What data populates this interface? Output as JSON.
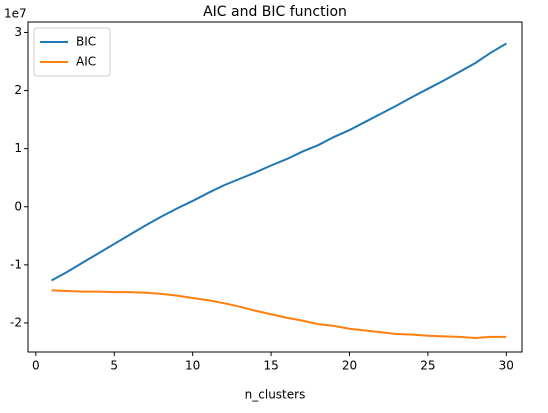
{
  "chart_data": {
    "type": "line",
    "title": "AIC and BIC function",
    "xlabel": "n_clusters",
    "y_offset_text": "1e7",
    "x": [
      1,
      2,
      3,
      4,
      5,
      6,
      7,
      8,
      9,
      10,
      11,
      12,
      13,
      14,
      15,
      16,
      17,
      18,
      19,
      20,
      21,
      22,
      23,
      24,
      25,
      26,
      27,
      28,
      29,
      30
    ],
    "series": [
      {
        "name": "BIC",
        "color": "#1f77b4",
        "values": [
          -1.27,
          -1.12,
          -0.96,
          -0.8,
          -0.64,
          -0.48,
          -0.32,
          -0.17,
          -0.03,
          0.1,
          0.24,
          0.37,
          0.48,
          0.59,
          0.71,
          0.82,
          0.95,
          1.06,
          1.2,
          1.32,
          1.46,
          1.6,
          1.74,
          1.89,
          2.03,
          2.17,
          2.32,
          2.47,
          2.65,
          2.81
        ]
      },
      {
        "name": "AIC",
        "color": "#ff7f0e",
        "values": [
          -1.44,
          -1.45,
          -1.46,
          -1.46,
          -1.47,
          -1.47,
          -1.48,
          -1.5,
          -1.53,
          -1.57,
          -1.61,
          -1.66,
          -1.72,
          -1.79,
          -1.85,
          -1.91,
          -1.96,
          -2.02,
          -2.05,
          -2.1,
          -2.13,
          -2.16,
          -2.19,
          -2.2,
          -2.22,
          -2.23,
          -2.24,
          -2.26,
          -2.24,
          -2.24
        ]
      }
    ],
    "xlim": [
      -0.5,
      31
    ],
    "xticks": [
      0,
      5,
      10,
      15,
      20,
      25,
      30
    ],
    "ylim": [
      -2.5,
      3.18
    ],
    "yticks": [
      -2,
      -1,
      0,
      1,
      2,
      3
    ],
    "legend": "upper left",
    "grid": false
  }
}
